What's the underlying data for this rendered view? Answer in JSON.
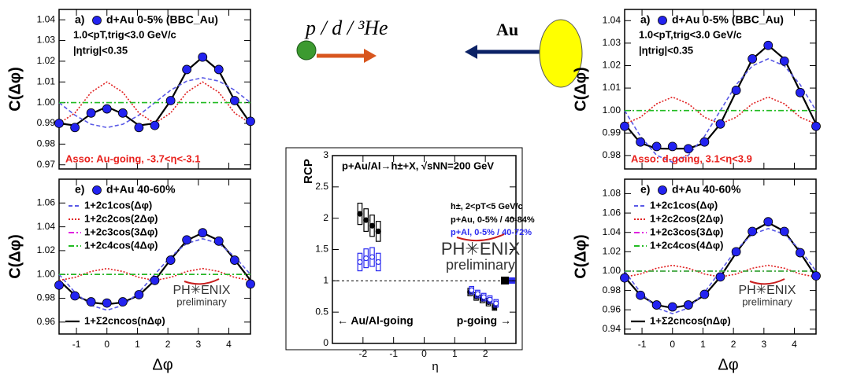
{
  "diagram": {
    "projectile_label": "p / d / ³He",
    "target_label": "Au"
  },
  "chart_data": [
    {
      "type": "line",
      "panel_label": "a)",
      "y_label": "C(Δφ)",
      "show_xtick_labels": false,
      "annotations": [
        {
          "text": "1.0<pT,trig<3.0 GeV/c",
          "color": "#000000"
        },
        {
          "text": "|ηtrig|<0.35",
          "color": "#000000"
        },
        {
          "text": "Asso: Au-going, -3.7<η<-3.1",
          "color": "#e8201c"
        }
      ],
      "x": [
        -1.57,
        -1.05,
        -0.52,
        0,
        0.52,
        1.05,
        1.57,
        2.09,
        2.62,
        3.14,
        3.67,
        4.19,
        4.71
      ],
      "xlim": [
        -1.57,
        4.71
      ],
      "xticks": [
        -1,
        0,
        1,
        2,
        3,
        4
      ],
      "ylim": [
        0.968,
        1.045
      ],
      "yticks": [
        0.97,
        0.98,
        0.99,
        {
          "value": 1,
          "label": "1.00"
        },
        1.01,
        1.02,
        1.03,
        1.04
      ],
      "series": [
        {
          "name": "d+Au 0-5% (BBC_Au)",
          "style": "markers",
          "color": "#2323f0",
          "values": [
            0.99,
            0.988,
            0.995,
            0.997,
            0.995,
            0.988,
            0.989,
            1.001,
            1.016,
            1.022,
            1.016,
            1.001,
            0.991
          ]
        },
        {
          "style": "solid",
          "color": "#000000",
          "values": [
            0.99,
            0.989,
            0.9946,
            0.998,
            0.9946,
            0.989,
            0.99,
            1.001,
            1.0154,
            1.022,
            1.0154,
            1.001,
            0.99
          ]
        },
        {
          "style": "dashed",
          "color": "#5a5ae6",
          "values": [
            1.0,
            0.994,
            0.9896,
            0.988,
            0.9896,
            0.994,
            1.0,
            1.006,
            1.0104,
            1.012,
            1.0104,
            1.006,
            1.0
          ]
        },
        {
          "style": "dotted",
          "color": "#e02020",
          "values": [
            0.99,
            0.995,
            1.005,
            1.01,
            1.005,
            0.995,
            0.99,
            0.995,
            1.005,
            1.01,
            1.005,
            0.995,
            0.99
          ]
        },
        {
          "style": "dashdot",
          "color": "#22bb22",
          "values": [
            1.0,
            1.0,
            1.0,
            1.0,
            1.0,
            1.0,
            1.0,
            1.0,
            1.0,
            1.0,
            1.0,
            1.0,
            1.0
          ]
        }
      ]
    },
    {
      "type": "line",
      "panel_label": "e)",
      "y_label": "C(Δφ)",
      "x_label": "Δφ",
      "show_xtick_labels": true,
      "logo_text": "PH✳ENIX",
      "logo_subtext": "preliminary",
      "x": [
        -1.57,
        -1.05,
        -0.52,
        0,
        0.52,
        1.05,
        1.57,
        2.09,
        2.62,
        3.14,
        3.67,
        4.19,
        4.71
      ],
      "xlim": [
        -1.57,
        4.71
      ],
      "xticks": [
        -1,
        0,
        1,
        2,
        3,
        4
      ],
      "ylim": [
        0.95,
        1.08
      ],
      "yticks": [
        0.96,
        0.98,
        {
          "value": 1,
          "label": "1.00"
        },
        1.02,
        1.04,
        1.06
      ],
      "series": [
        {
          "name": "d+Au 40-60%",
          "style": "markers",
          "color": "#2323f0",
          "values": [
            0.991,
            0.982,
            0.977,
            0.976,
            0.977,
            0.983,
            0.995,
            1.012,
            1.029,
            1.035,
            1.028,
            1.012,
            0.992
          ]
        },
        {
          "name": "1+Σ2cncos(nΔφ)",
          "style": "solid",
          "color": "#000000",
          "values": [
            0.995,
            0.9825,
            0.9765,
            0.975,
            0.9765,
            0.9825,
            0.995,
            1.0125,
            1.0285,
            1.035,
            1.0285,
            1.0125,
            0.995
          ]
        },
        {
          "name": "1+2c1cos(Δφ)",
          "style": "dashed",
          "color": "#5a5ae6",
          "values": [
            1.0,
            0.985,
            0.974,
            0.97,
            0.974,
            0.985,
            1.0,
            1.015,
            1.026,
            1.03,
            1.026,
            1.015,
            1.0
          ]
        },
        {
          "name": "1+2c2cos(2Δφ)",
          "style": "dotted",
          "color": "#e02020",
          "values": [
            0.995,
            0.9975,
            1.0025,
            1.005,
            1.0025,
            0.9975,
            0.995,
            0.9975,
            1.0025,
            1.005,
            1.0025,
            0.9975,
            0.995
          ]
        },
        {
          "name": "1+2c3cos(3Δφ)",
          "style": "dashdot",
          "color": "#e020e0",
          "values": [
            1.0,
            1.0,
            1.0,
            1.0,
            1.0,
            1.0,
            1.0,
            1.0,
            1.0,
            1.0,
            1.0,
            1.0,
            1.0
          ]
        },
        {
          "name": "1+2c4cos(4Δφ)",
          "style": "dashdot",
          "color": "#22bb22",
          "values": [
            1.0,
            1.0,
            1.0,
            1.0,
            1.0,
            1.0,
            1.0,
            1.0,
            1.0,
            1.0,
            1.0,
            1.0,
            1.0
          ]
        }
      ]
    },
    {
      "type": "line",
      "panel_label": "a)",
      "y_label": "C(Δφ)",
      "show_xtick_labels": false,
      "annotations": [
        {
          "text": "1.0<pT,trig<3.0 GeV/c",
          "color": "#000000"
        },
        {
          "text": "|ηtrig|<0.35",
          "color": "#000000"
        },
        {
          "text": "Asso: d-going, 3.1<η<3.9",
          "color": "#e8201c"
        }
      ],
      "x": [
        -1.57,
        -1.05,
        -0.52,
        0,
        0.52,
        1.05,
        1.57,
        2.09,
        2.62,
        3.14,
        3.67,
        4.19,
        4.71
      ],
      "xlim": [
        -1.57,
        4.71
      ],
      "xticks": [
        -1,
        0,
        1,
        2,
        3,
        4
      ],
      "ylim": [
        0.974,
        1.045
      ],
      "yticks": [
        0.98,
        0.99,
        {
          "value": 1,
          "label": "1.00"
        },
        1.01,
        1.02,
        1.03,
        1.04
      ],
      "series": [
        {
          "name": "d+Au 0-5% (BBC_Au)",
          "style": "markers",
          "color": "#2323f0",
          "values": [
            0.993,
            0.986,
            0.984,
            0.984,
            0.983,
            0.986,
            0.994,
            1.009,
            1.023,
            1.029,
            1.022,
            1.008,
            0.993
          ]
        },
        {
          "style": "solid",
          "color": "#000000",
          "values": [
            0.994,
            0.9855,
            0.9831,
            0.983,
            0.9831,
            0.9855,
            0.994,
            1.0085,
            1.0229,
            1.029,
            1.0229,
            1.0085,
            0.994
          ]
        },
        {
          "style": "dashed",
          "color": "#5a5ae6",
          "values": [
            1.0,
            0.9885,
            0.9801,
            0.977,
            0.9801,
            0.9885,
            1.0,
            1.0115,
            1.0199,
            1.023,
            1.0199,
            1.0115,
            1.0
          ]
        },
        {
          "style": "dotted",
          "color": "#e02020",
          "values": [
            0.994,
            0.997,
            1.003,
            1.006,
            1.003,
            0.997,
            0.994,
            0.997,
            1.003,
            1.006,
            1.003,
            0.997,
            0.994
          ]
        },
        {
          "style": "dashdot",
          "color": "#22bb22",
          "values": [
            1.0,
            1.0,
            1.0,
            1.0,
            1.0,
            1.0,
            1.0,
            1.0,
            1.0,
            1.0,
            1.0,
            1.0,
            1.0
          ]
        }
      ]
    },
    {
      "type": "line",
      "panel_label": "e)",
      "y_label": "C(Δφ)",
      "x_label": "Δφ",
      "show_xtick_labels": true,
      "logo_text": "PH✳ENIX",
      "logo_subtext": "preliminary",
      "x": [
        -1.57,
        -1.05,
        -0.52,
        0,
        0.52,
        1.05,
        1.57,
        2.09,
        2.62,
        3.14,
        3.67,
        4.19,
        4.71
      ],
      "xlim": [
        -1.57,
        4.71
      ],
      "xticks": [
        -1,
        0,
        1,
        2,
        3,
        4
      ],
      "ylim": [
        0.935,
        1.095
      ],
      "yticks": [
        0.94,
        0.96,
        0.98,
        {
          "value": 1,
          "label": "1.00"
        },
        1.02,
        1.04,
        1.06,
        1.08
      ],
      "series": [
        {
          "name": "d+Au 40-60%",
          "style": "markers",
          "color": "#2323f0",
          "values": [
            0.993,
            0.975,
            0.965,
            0.963,
            0.965,
            0.976,
            0.994,
            1.02,
            1.041,
            1.051,
            1.041,
            1.019,
            0.995
          ]
        },
        {
          "name": "1+Σ2cncos(nΔφ)",
          "style": "solid",
          "color": "#000000",
          "values": [
            0.994,
            0.975,
            0.9649,
            0.962,
            0.9649,
            0.975,
            0.994,
            1.019,
            1.0411,
            1.05,
            1.0411,
            1.019,
            0.994
          ]
        },
        {
          "name": "1+2c1cos(Δφ)",
          "style": "dashed",
          "color": "#5a5ae6",
          "values": [
            1.0,
            0.978,
            0.9619,
            0.956,
            0.9619,
            0.978,
            1.0,
            1.022,
            1.0381,
            1.044,
            1.0381,
            1.022,
            1.0
          ]
        },
        {
          "name": "1+2c2cos(2Δφ)",
          "style": "dotted",
          "color": "#e02020",
          "values": [
            0.994,
            0.997,
            1.003,
            1.006,
            1.003,
            0.997,
            0.994,
            0.997,
            1.003,
            1.006,
            1.003,
            0.997,
            0.994
          ]
        },
        {
          "name": "1+2c3cos(3Δφ)",
          "style": "dashdot",
          "color": "#e020e0",
          "values": [
            1.0,
            1.0,
            1.0,
            1.0,
            1.0,
            1.0,
            1.0,
            1.0,
            1.0,
            1.0,
            1.0,
            1.0,
            1.0
          ]
        },
        {
          "name": "1+2c4cos(4Δφ)",
          "style": "dashdot",
          "color": "#22bb22",
          "values": [
            1.0,
            1.0,
            1.0,
            1.0,
            1.0,
            1.0,
            1.0,
            1.0,
            1.0,
            1.0,
            1.0,
            1.0,
            1.0
          ]
        }
      ]
    },
    {
      "type": "errorbox",
      "title": "p+Au/Al→h±+X, √sNN=200 GeV",
      "y_label": "RCP",
      "x_label": "η",
      "logo_text": "PH✳ENIX",
      "logo_subtext": "preliminary",
      "annotations": [
        {
          "text": "h±, 2<pT<5 GeV/c",
          "color": "#000000"
        },
        {
          "text": "← Au/Al-going",
          "color": "#000000"
        },
        {
          "text": "p-going →",
          "color": "#000000"
        }
      ],
      "xlim": [
        -3,
        3
      ],
      "xticks": [
        -2,
        -1,
        0,
        1,
        2
      ],
      "ylim": [
        0,
        3
      ],
      "yticks": [
        0,
        0.5,
        1,
        1.5,
        2,
        2.5,
        3
      ],
      "hline": 1,
      "series": [
        {
          "name": "p+Au, 0-5% / 40-84%",
          "marker": "filled",
          "color": "#000000",
          "x": [
            -2.1,
            -1.9,
            -1.7,
            -1.5,
            1.5,
            1.7,
            1.9,
            2.1,
            2.3
          ],
          "values": [
            2.07,
            1.97,
            1.88,
            1.79,
            0.82,
            0.75,
            0.71,
            0.66,
            0.58
          ],
          "errors": [
            0.17,
            0.18,
            0.17,
            0.16,
            0.06,
            0.06,
            0.06,
            0.06,
            0.05
          ]
        },
        {
          "name": "p+Al, 0-5% / 40-72%",
          "marker": "open",
          "color": "#2a2af0",
          "x": [
            -2.1,
            -1.9,
            -1.7,
            -1.5,
            1.55,
            1.75,
            1.95,
            2.15,
            2.35
          ],
          "values": [
            1.3,
            1.36,
            1.38,
            1.3,
            0.85,
            0.79,
            0.74,
            0.7,
            0.64
          ],
          "errors": [
            0.14,
            0.15,
            0.15,
            0.14,
            0.06,
            0.06,
            0.06,
            0.06,
            0.06
          ]
        }
      ]
    }
  ]
}
